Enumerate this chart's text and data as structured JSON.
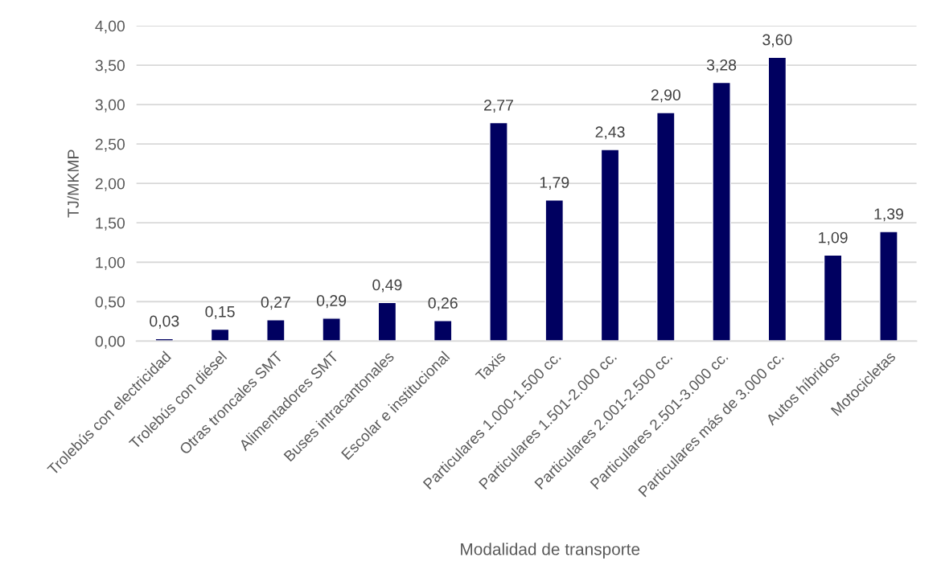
{
  "chart_data": {
    "type": "bar",
    "xlabel": "Modalidad de transporte",
    "ylabel": "TJ/MKMP",
    "categories": [
      "Trolebús con electricidad",
      "Trolebús con diésel",
      "Otras troncales SMT",
      "Alimentadores SMT",
      "Buses intracantonales",
      "Escolar e institucional",
      "Taxis",
      "Particulares 1.000-1.500 cc.",
      "Particulares 1.501-2.000 cc.",
      "Particulares 2.001-2.500 cc.",
      "Particulares 2.501-3.000 cc.",
      "Particulares más de 3.000 cc.",
      "Autos híbridos",
      "Motocicletas"
    ],
    "values": [
      0.03,
      0.15,
      0.27,
      0.29,
      0.49,
      0.26,
      2.77,
      1.79,
      2.43,
      2.9,
      3.28,
      3.6,
      1.09,
      1.39
    ],
    "value_labels": [
      "0,03",
      "0,15",
      "0,27",
      "0,29",
      "0,49",
      "0,26",
      "2,77",
      "1,79",
      "2,43",
      "2,90",
      "3,28",
      "3,60",
      "1,09",
      "1,39"
    ],
    "color": "#000060",
    "ylim": [
      0,
      4
    ],
    "yticks": [
      {
        "value": 0,
        "label": "0,00"
      },
      {
        "value": 0.5,
        "label": "0,50"
      },
      {
        "value": 1,
        "label": "1,00"
      },
      {
        "value": 1.5,
        "label": "1,50"
      },
      {
        "value": 2,
        "label": "2,00"
      },
      {
        "value": 2.5,
        "label": "2,50"
      },
      {
        "value": 3,
        "label": "3,00"
      },
      {
        "value": 3.5,
        "label": "3,50"
      },
      {
        "value": 4,
        "label": "4,00"
      }
    ],
    "grid": "y"
  }
}
